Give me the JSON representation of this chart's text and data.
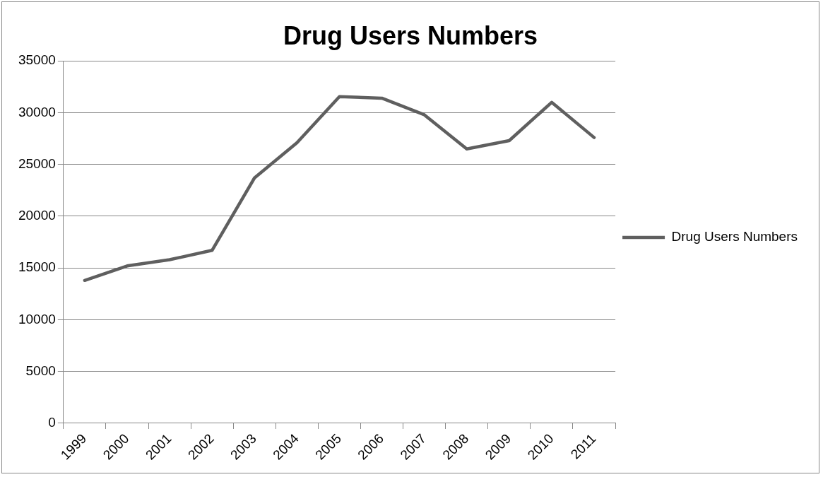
{
  "chart_data": {
    "type": "line",
    "title": "Drug Users Numbers",
    "categories": [
      "1999",
      "2000",
      "2001",
      "2002",
      "2003",
      "2004",
      "2005",
      "2006",
      "2007",
      "2008",
      "2009",
      "2010",
      "2011"
    ],
    "series": [
      {
        "name": "Drug Users Numbers",
        "color": "#5f5f5f",
        "values": [
          13800,
          15200,
          15800,
          16700,
          23700,
          27100,
          31550,
          31400,
          29800,
          26500,
          27300,
          31000,
          27600
        ]
      }
    ],
    "ylim": [
      0,
      35000
    ],
    "yticks": [
      0,
      5000,
      10000,
      15000,
      20000,
      25000,
      30000,
      35000
    ],
    "grid": "y",
    "legend": "right",
    "marker": "none",
    "line_style": "solid"
  }
}
